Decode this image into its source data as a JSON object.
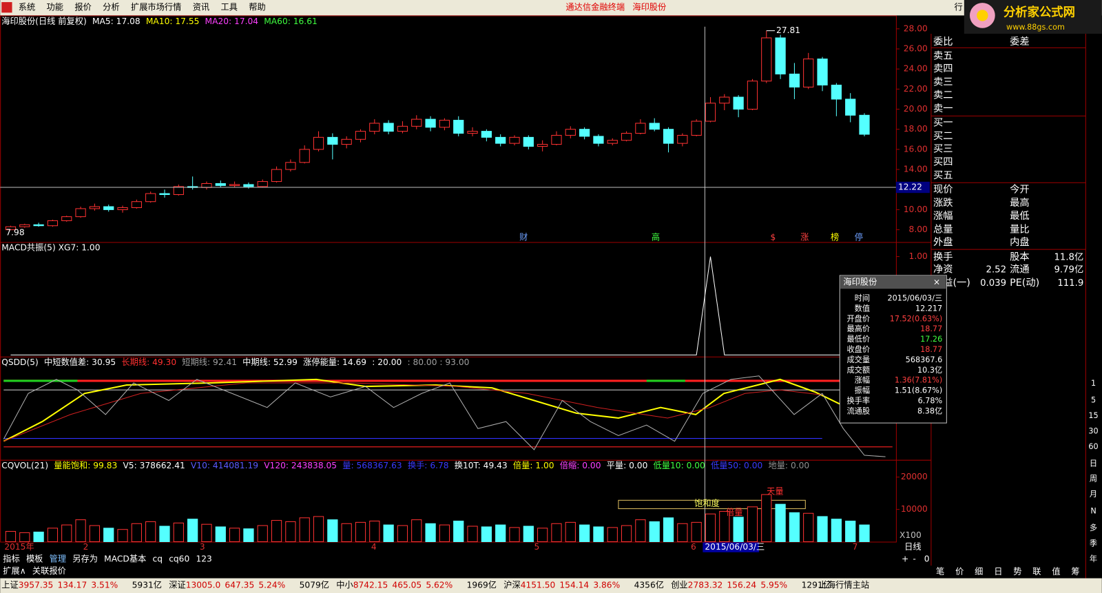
{
  "menu": [
    "系统",
    "功能",
    "报价",
    "分析",
    "扩展市场行情",
    "资讯",
    "工具",
    "帮助"
  ],
  "app_title": "通达信金融终端",
  "app_stock": "海印股份",
  "menu_right": "行",
  "logo": "分析家公式网",
  "logo_url": "www.88gs.com",
  "main_chart": {
    "type": "candlestick",
    "legend": [
      {
        "text": "海印股份(日线 前复权)",
        "color": "#ffffff"
      },
      {
        "text": "MA5: 17.08",
        "color": "#ffffff"
      },
      {
        "text": "MA10: 17.55",
        "color": "#ffff00"
      },
      {
        "text": "MA20: 17.04",
        "color": "#ff40ff"
      },
      {
        "text": "MA60: 16.61",
        "color": "#40ff40"
      }
    ],
    "ylim": [
      6.74,
      28.77
    ],
    "yticks": [
      {
        "value": 8,
        "label": "8.00"
      },
      {
        "value": 10,
        "label": "10.00"
      },
      {
        "value": 12,
        "label": "12.00"
      },
      {
        "value": 14,
        "label": "14.00"
      },
      {
        "value": 16,
        "label": "16.00"
      },
      {
        "value": 18,
        "label": "18.00"
      },
      {
        "value": 20,
        "label": "20.00"
      },
      {
        "value": 22,
        "label": "22.00"
      },
      {
        "value": 24,
        "label": "24.00"
      },
      {
        "value": 26,
        "label": "26.00"
      },
      {
        "value": 28,
        "label": "28.00"
      }
    ],
    "high_label": "27.81",
    "low_label": "7.98",
    "crosshair": 12.22,
    "markers": [
      {
        "text": "财",
        "color": "#6ea0ff"
      },
      {
        "text": "高",
        "color": "#40ff40"
      },
      {
        "text": "$",
        "color": "#ff4040"
      },
      {
        "text": "涨",
        "color": "#ff4040"
      },
      {
        "text": "榜",
        "color": "#ffff00"
      },
      {
        "text": "停",
        "color": "#6ea0ff"
      }
    ],
    "up_color": "#ff3232",
    "down_color": "#54ffff",
    "candles": [
      [
        8.0,
        8.3,
        8.4,
        7.98
      ],
      [
        8.3,
        8.5,
        8.6,
        8.2
      ],
      [
        8.5,
        8.4,
        8.7,
        8.3
      ],
      [
        8.4,
        8.9,
        9.0,
        8.3
      ],
      [
        8.9,
        9.3,
        9.4,
        8.8
      ],
      [
        9.3,
        10.1,
        10.3,
        9.2
      ],
      [
        10.1,
        10.3,
        10.6,
        9.9
      ],
      [
        10.3,
        10.0,
        10.5,
        9.8
      ],
      [
        10.0,
        10.2,
        10.4,
        9.7
      ],
      [
        10.2,
        10.8,
        11.0,
        10.1
      ],
      [
        10.8,
        11.6,
        11.8,
        10.7
      ],
      [
        11.6,
        11.5,
        12.0,
        11.2
      ],
      [
        11.5,
        12.3,
        12.5,
        11.4
      ],
      [
        12.3,
        12.2,
        13.3,
        12.0
      ],
      [
        12.2,
        12.6,
        12.8,
        12.0
      ],
      [
        12.6,
        12.4,
        12.9,
        12.2
      ],
      [
        12.4,
        12.5,
        12.8,
        12.2
      ],
      [
        12.5,
        12.3,
        12.7,
        12.1
      ],
      [
        12.3,
        12.8,
        13.0,
        12.2
      ],
      [
        12.8,
        14.0,
        14.3,
        12.7
      ],
      [
        14.0,
        14.7,
        15.0,
        13.8
      ],
      [
        14.7,
        16.0,
        16.4,
        14.6
      ],
      [
        16.0,
        17.2,
        17.8,
        15.8
      ],
      [
        17.2,
        16.5,
        17.6,
        15.0
      ],
      [
        16.5,
        17.0,
        17.3,
        16.1
      ],
      [
        17.0,
        17.8,
        18.0,
        16.7
      ],
      [
        17.8,
        18.6,
        19.0,
        17.5
      ],
      [
        18.6,
        17.8,
        18.9,
        17.5
      ],
      [
        17.8,
        18.3,
        18.8,
        17.6
      ],
      [
        18.3,
        19.0,
        19.4,
        18.0
      ],
      [
        19.0,
        18.2,
        19.3,
        17.8
      ],
      [
        18.2,
        18.9,
        19.1,
        17.9
      ],
      [
        18.9,
        17.6,
        19.3,
        17.3
      ],
      [
        17.6,
        17.8,
        18.2,
        17.3
      ],
      [
        17.8,
        17.2,
        18.0,
        16.8
      ],
      [
        17.2,
        16.6,
        17.5,
        16.3
      ],
      [
        16.6,
        17.2,
        17.4,
        16.4
      ],
      [
        17.2,
        16.3,
        17.4,
        16.0
      ],
      [
        16.3,
        16.5,
        16.9,
        15.8
      ],
      [
        16.5,
        17.4,
        17.8,
        16.4
      ],
      [
        17.4,
        18.0,
        18.3,
        17.1
      ],
      [
        18.0,
        17.3,
        18.2,
        17.0
      ],
      [
        17.3,
        16.6,
        17.5,
        16.3
      ],
      [
        16.6,
        16.9,
        17.1,
        16.4
      ],
      [
        16.9,
        17.6,
        17.8,
        16.8
      ],
      [
        17.6,
        18.6,
        19.0,
        17.5
      ],
      [
        18.6,
        18.0,
        19.1,
        17.8
      ],
      [
        18.0,
        16.6,
        18.2,
        15.7
      ],
      [
        16.6,
        17.4,
        17.6,
        16.3
      ],
      [
        17.4,
        18.8,
        19.0,
        17.3
      ],
      [
        18.8,
        20.6,
        21.2,
        18.7
      ],
      [
        20.6,
        21.2,
        21.5,
        19.9
      ],
      [
        21.2,
        20.0,
        21.4,
        19.2
      ],
      [
        20.0,
        22.8,
        23.0,
        19.9
      ],
      [
        22.8,
        27.1,
        27.81,
        22.6
      ],
      [
        27.1,
        23.5,
        27.4,
        23.0
      ],
      [
        23.5,
        22.2,
        24.6,
        21.0
      ],
      [
        22.2,
        25.0,
        25.6,
        22.0
      ],
      [
        25.0,
        22.4,
        25.2,
        21.8
      ],
      [
        22.4,
        21.0,
        22.6,
        19.3
      ],
      [
        21.0,
        19.4,
        21.6,
        18.7
      ],
      [
        19.4,
        17.5,
        19.6,
        17.3
      ]
    ]
  },
  "macd": {
    "type": "line",
    "legend": "MACD共振(5) XG7: 1.00",
    "ylim": [
      -0.02,
      1.13
    ],
    "yticks": [
      {
        "value": 1,
        "label": "1.00"
      }
    ],
    "color": "#ffffff",
    "values": [
      0,
      0,
      0,
      0,
      0,
      0,
      0,
      0,
      0,
      0,
      0,
      0,
      0,
      0,
      0,
      0,
      0,
      0,
      0,
      0,
      0,
      0,
      0,
      0,
      0,
      0,
      0,
      0,
      0,
      0,
      0,
      0,
      0,
      0,
      0,
      0,
      0,
      0,
      0,
      0,
      0,
      0,
      0,
      0,
      0,
      0,
      0,
      0,
      0,
      0,
      1,
      0,
      0,
      0,
      0,
      0,
      0,
      0,
      0,
      0,
      0,
      0
    ]
  },
  "qsdd": {
    "legend": [
      {
        "text": "QSDD(5)",
        "color": "#ffffff"
      },
      {
        "text": "中短数值差: 30.95",
        "color": "#ffffff"
      },
      {
        "text": "长期线: 49.30",
        "color": "#ff3030"
      },
      {
        "text": "短期线: 92.41",
        "color": "#a0a0a0"
      },
      {
        "text": "中期线: 52.99",
        "color": "#ffffff"
      },
      {
        "text": "涨停能量: 14.69",
        "color": "#ffffff"
      },
      {
        "text": ": 20.00",
        "color": "#ffffff"
      },
      {
        "text": ": 80.00 : 93.00",
        "color": "#a0a0a0"
      }
    ]
  },
  "volume": {
    "type": "bar",
    "legend": [
      {
        "text": "CQVOL(21)",
        "color": "#ffffff"
      },
      {
        "text": "量能饱和: 99.83",
        "color": "#ffff00"
      },
      {
        "text": "V5: 378662.41",
        "color": "#ffffff"
      },
      {
        "text": "V10: 414081.19",
        "color": "#5a5aff"
      },
      {
        "text": "V120: 243838.05",
        "color": "#ff40ff"
      },
      {
        "text": "量: 568367.63",
        "color": "#3a3aff"
      },
      {
        "text": "换手: 6.78",
        "color": "#3a3aff"
      },
      {
        "text": "换10T: 49.43",
        "color": "#ffffff"
      },
      {
        "text": "倍量: 1.00",
        "color": "#ffff00"
      },
      {
        "text": "倍缩: 0.00",
        "color": "#ff40ff"
      },
      {
        "text": "平量: 0.00",
        "color": "#ffffff"
      },
      {
        "text": "低量10: 0.00",
        "color": "#40ff40"
      },
      {
        "text": "低量50: 0.00",
        "color": "#3a3aff"
      },
      {
        "text": "地量: 0.00",
        "color": "#909090"
      }
    ],
    "ylim": [
      0,
      24800
    ],
    "yticks": [
      10000,
      20000
    ],
    "unit": "X100",
    "annotations": [
      "天量",
      "饱和度",
      "倍量"
    ],
    "values": [
      3200,
      2800,
      3000,
      4200,
      5200,
      6800,
      5000,
      4200,
      3800,
      5600,
      6200,
      4800,
      5800,
      7000,
      5400,
      4600,
      4200,
      4000,
      5000,
      6600,
      6200,
      7400,
      7800,
      6800,
      5600,
      6000,
      6400,
      5200,
      5000,
      6800,
      5600,
      5200,
      6400,
      4800,
      4600,
      5200,
      4400,
      4800,
      4200,
      5600,
      6000,
      5200,
      4600,
      4400,
      5000,
      6800,
      6200,
      7400,
      5600,
      6000,
      8600,
      9400,
      7600,
      10800,
      14600,
      11600,
      9000,
      8800,
      7800,
      7000,
      6400,
      5200
    ]
  },
  "x_labels": [
    "2015年",
    "2",
    "3",
    "4",
    "5",
    "6",
    "7"
  ],
  "x_cursor": "2015/06/03/三",
  "period": "日线",
  "tabs": [
    "指标",
    "模板",
    "管理",
    "另存为",
    "MACD基本",
    "cq",
    "cq60",
    "123"
  ],
  "tabs2": [
    "扩展∧",
    "关联报价"
  ],
  "zoom": [
    "+",
    "-",
    "0"
  ],
  "quote": {
    "rows": [
      {
        "label": "委比",
        "label2": "委差"
      },
      {
        "label": "卖五"
      },
      {
        "label": "卖四"
      },
      {
        "label": "卖三"
      },
      {
        "label": "卖二"
      },
      {
        "label": "卖一"
      },
      {
        "label": "买一"
      },
      {
        "label": "买二"
      },
      {
        "label": "买三"
      },
      {
        "label": "买四"
      },
      {
        "label": "买五"
      },
      {
        "label": "现价",
        "label2": "今开"
      },
      {
        "label": "涨跌",
        "label2": "最高"
      },
      {
        "label": "涨幅",
        "label2": "最低"
      },
      {
        "label": "总量",
        "label2": "量比"
      },
      {
        "label": "外盘",
        "label2": "内盘"
      },
      {
        "label": "换手",
        "label2": "股本",
        "value2": "11.8亿"
      },
      {
        "label": "净资",
        "value": "2.52",
        "label2": "流通",
        "value2": "9.79亿"
      },
      {
        "label": "收益(一)",
        "value": "0.039",
        "label2": "PE(动)",
        "value2": "111.9"
      }
    ],
    "bottom_tabs": [
      "笔",
      "价",
      "细",
      "日",
      "势",
      "联",
      "值",
      "筹"
    ]
  },
  "toolbar": [
    "1",
    "5",
    "15",
    "30",
    "60",
    "日",
    "周",
    "月",
    "N",
    "多",
    "季",
    "年"
  ],
  "popup": {
    "title": "海印股份",
    "close": "×",
    "rows": [
      [
        "时间",
        "2015/06/03/三"
      ],
      [
        "数值",
        "12.217"
      ],
      [
        "开盘价",
        "17.52(0.63%)"
      ],
      [
        "最高价",
        "18.77"
      ],
      [
        "最低价",
        "17.26"
      ],
      [
        "收盘价",
        "18.77"
      ],
      [
        "成交量",
        "568367.6"
      ],
      [
        "成交额",
        "10.3亿"
      ],
      [
        "涨幅",
        "1.36(7.81%)"
      ],
      [
        "振幅",
        "1.51(8.67%)"
      ],
      [
        "换手率",
        "6.78%"
      ],
      [
        "流通股",
        "8.38亿"
      ]
    ]
  },
  "status": [
    {
      "name": "上证",
      "price": "3957.35",
      "change": "134.17",
      "pct": "3.51%",
      "amount": "5931亿"
    },
    {
      "name": "深证",
      "price": "13005.0",
      "change": "647.35",
      "pct": "5.24%",
      "amount": "5079亿"
    },
    {
      "name": "中小",
      "price": "8742.15",
      "change": "465.05",
      "pct": "5.62%",
      "amount": "1969亿"
    },
    {
      "name": "沪深",
      "price": "4151.50",
      "change": "154.14",
      "pct": "3.86%",
      "amount": "4356亿"
    },
    {
      "name": "创业",
      "price": "2783.32",
      "change": "156.24",
      "pct": "5.95%",
      "amount": "1291亿"
    }
  ],
  "server": "上海行情主站"
}
